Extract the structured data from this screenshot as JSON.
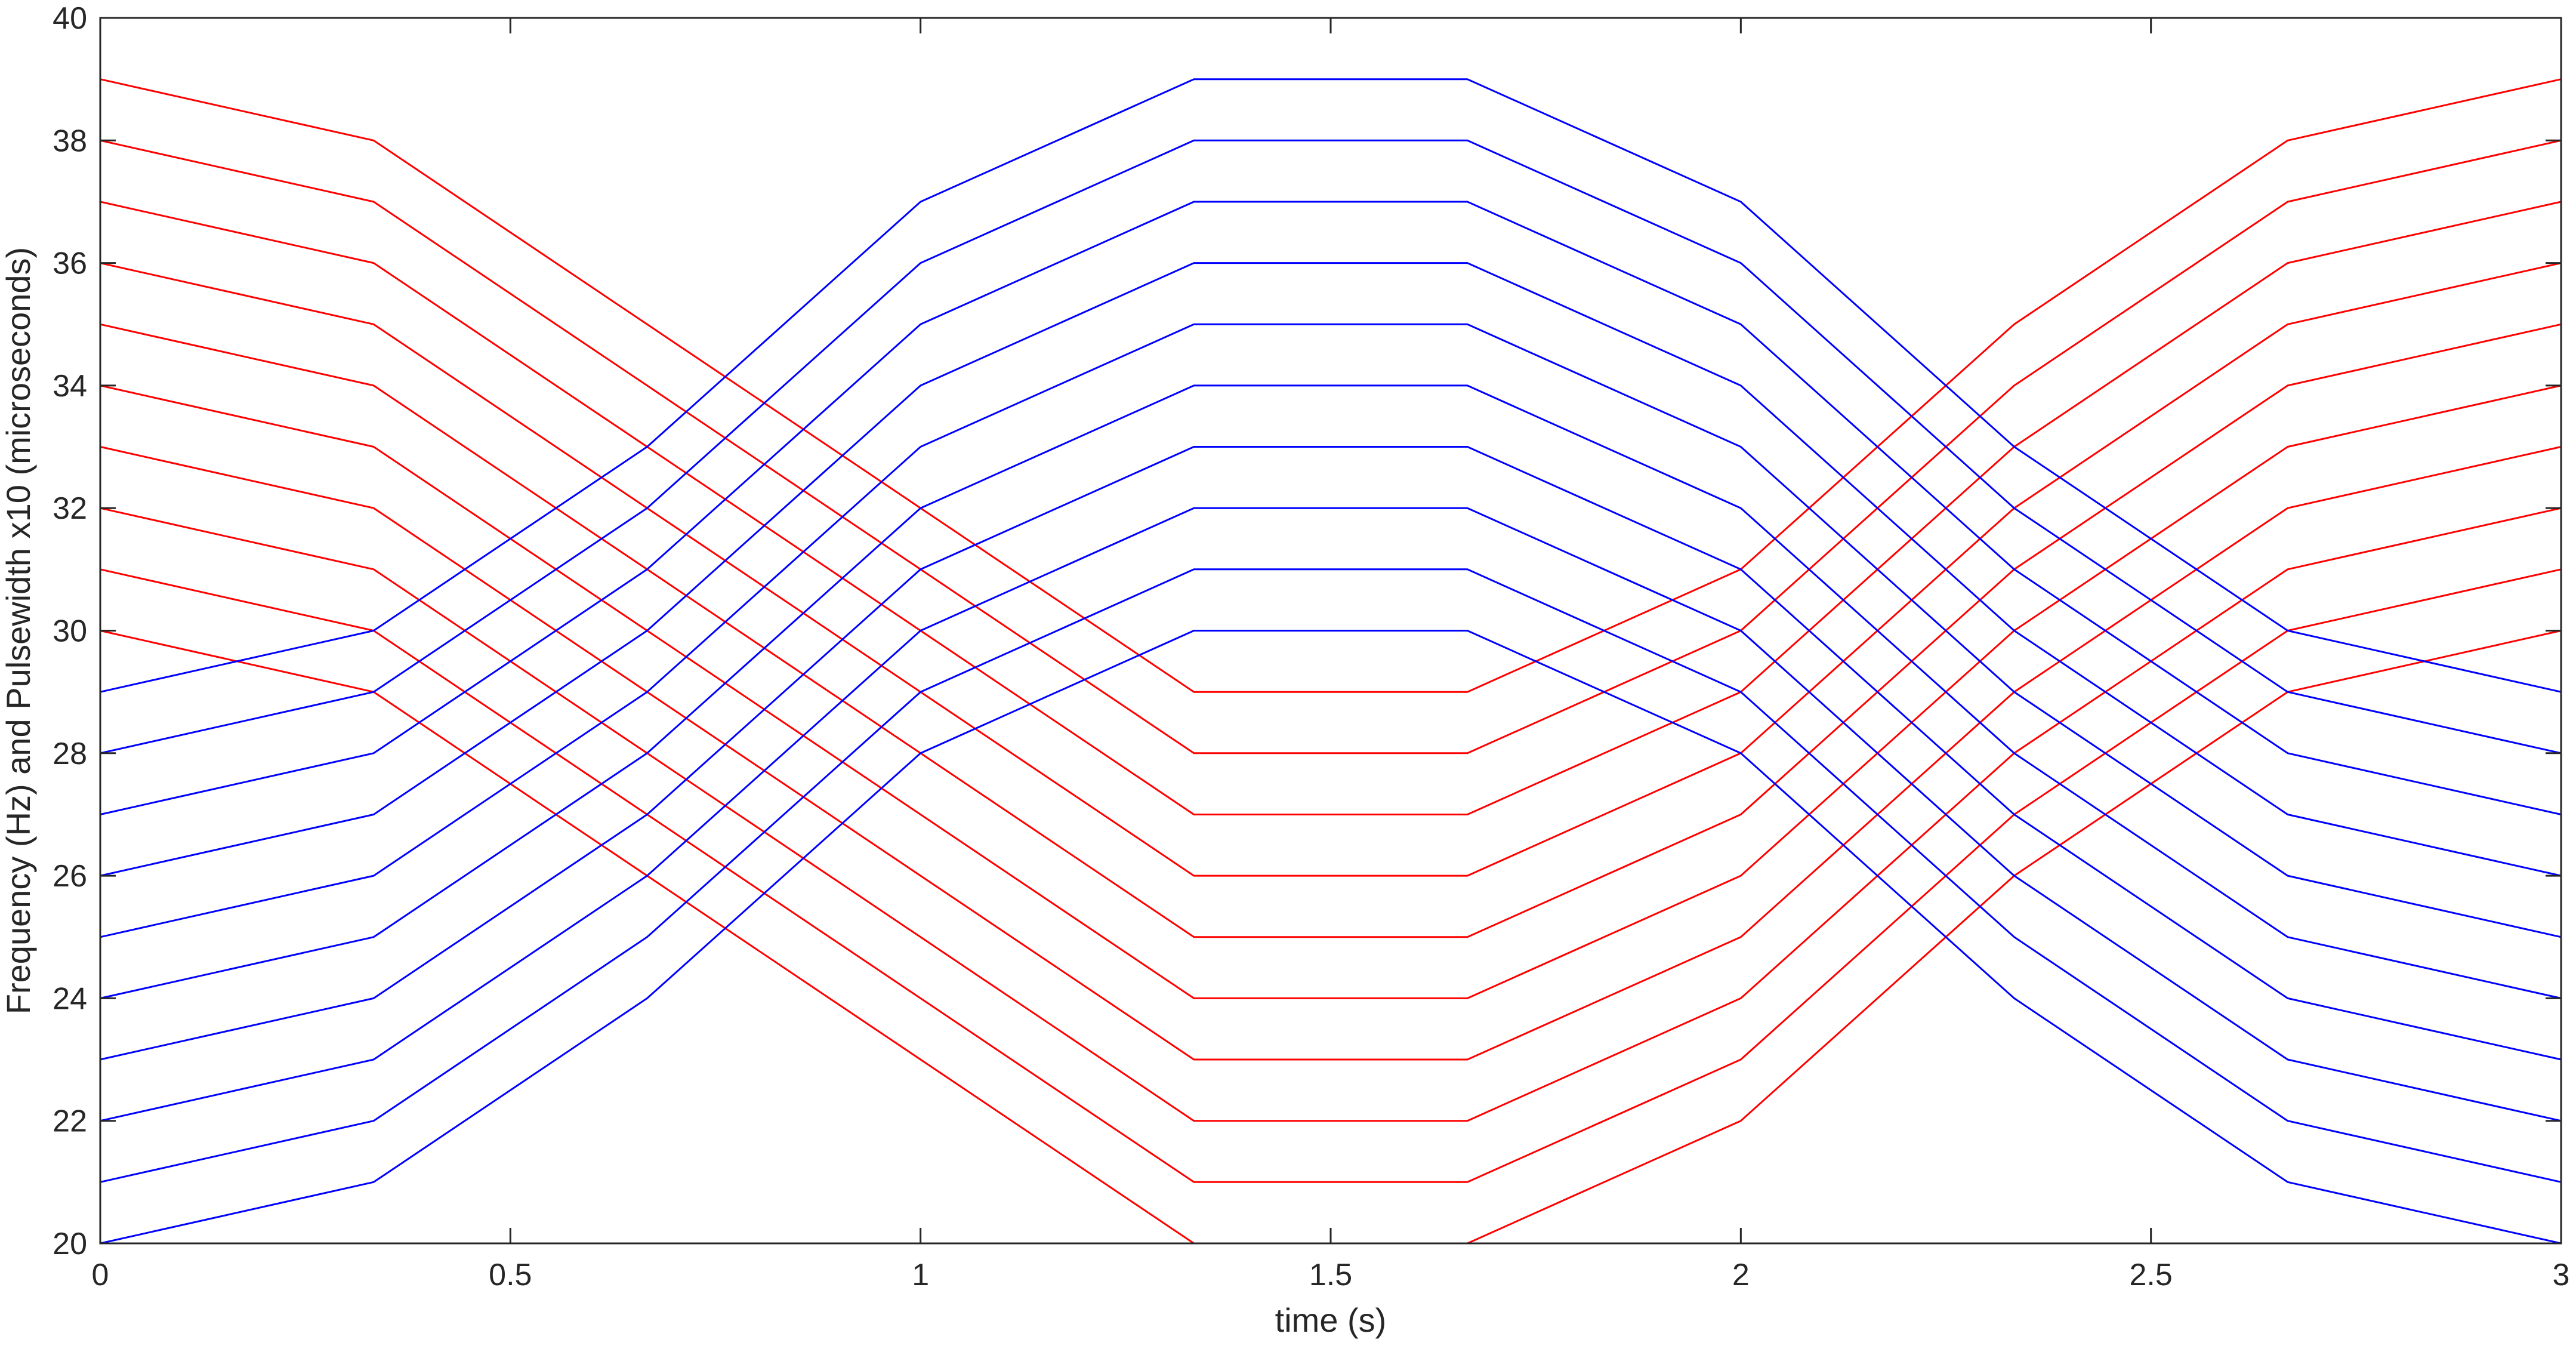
{
  "chart_data": {
    "type": "line",
    "xlabel": "time (s)",
    "ylabel": "Frequency (Hz) and Pulsewidth x10 (microseconds)",
    "xlim": [
      0,
      3
    ],
    "ylim": [
      20,
      40
    ],
    "grid": false,
    "box": true,
    "x_ticks": [
      "0",
      "0.5",
      "1",
      "1.5",
      "2",
      "2.5",
      "3"
    ],
    "y_ticks": [
      "20",
      "22",
      "24",
      "26",
      "28",
      "30",
      "32",
      "34",
      "36",
      "38",
      "40"
    ],
    "x": [
      0,
      0.3333,
      0.6667,
      1,
      1.3333,
      1.6667,
      2,
      2.3333,
      2.6667,
      3
    ],
    "series_colors": {
      "red": "#ff0000",
      "blue": "#0000ff"
    },
    "series": [
      {
        "color": "red",
        "values": [
          30,
          29,
          26,
          23,
          20,
          20,
          22,
          26,
          29,
          30
        ]
      },
      {
        "color": "red",
        "values": [
          31,
          30,
          27,
          24,
          21,
          21,
          23,
          27,
          30,
          31
        ]
      },
      {
        "color": "red",
        "values": [
          32,
          31,
          28,
          25,
          22,
          22,
          24,
          28,
          31,
          32
        ]
      },
      {
        "color": "red",
        "values": [
          33,
          32,
          29,
          26,
          23,
          23,
          25,
          29,
          32,
          33
        ]
      },
      {
        "color": "red",
        "values": [
          34,
          33,
          30,
          27,
          24,
          24,
          26,
          30,
          33,
          34
        ]
      },
      {
        "color": "red",
        "values": [
          35,
          34,
          31,
          28,
          25,
          25,
          27,
          31,
          34,
          35
        ]
      },
      {
        "color": "red",
        "values": [
          36,
          35,
          32,
          29,
          26,
          26,
          28,
          32,
          35,
          36
        ]
      },
      {
        "color": "red",
        "values": [
          37,
          36,
          33,
          30,
          27,
          27,
          29,
          33,
          36,
          37
        ]
      },
      {
        "color": "red",
        "values": [
          38,
          37,
          34,
          31,
          28,
          28,
          30,
          34,
          37,
          38
        ]
      },
      {
        "color": "red",
        "values": [
          39,
          38,
          35,
          32,
          29,
          29,
          31,
          35,
          38,
          39
        ]
      },
      {
        "color": "blue",
        "values": [
          20,
          21,
          24,
          28,
          30,
          30,
          28,
          24,
          21,
          20
        ]
      },
      {
        "color": "blue",
        "values": [
          21,
          22,
          25,
          29,
          31,
          31,
          29,
          25,
          22,
          21
        ]
      },
      {
        "color": "blue",
        "values": [
          22,
          23,
          26,
          30,
          32,
          32,
          30,
          26,
          23,
          22
        ]
      },
      {
        "color": "blue",
        "values": [
          23,
          24,
          27,
          31,
          33,
          33,
          31,
          27,
          24,
          23
        ]
      },
      {
        "color": "blue",
        "values": [
          24,
          25,
          28,
          32,
          34,
          34,
          32,
          28,
          25,
          24
        ]
      },
      {
        "color": "blue",
        "values": [
          25,
          26,
          29,
          33,
          35,
          35,
          33,
          29,
          26,
          25
        ]
      },
      {
        "color": "blue",
        "values": [
          26,
          27,
          30,
          34,
          36,
          36,
          34,
          30,
          27,
          26
        ]
      },
      {
        "color": "blue",
        "values": [
          27,
          28,
          31,
          35,
          37,
          37,
          35,
          31,
          28,
          27
        ]
      },
      {
        "color": "blue",
        "values": [
          28,
          29,
          32,
          36,
          38,
          38,
          36,
          32,
          29,
          28
        ]
      },
      {
        "color": "blue",
        "values": [
          29,
          30,
          33,
          37,
          39,
          39,
          37,
          33,
          30,
          29
        ]
      }
    ]
  }
}
